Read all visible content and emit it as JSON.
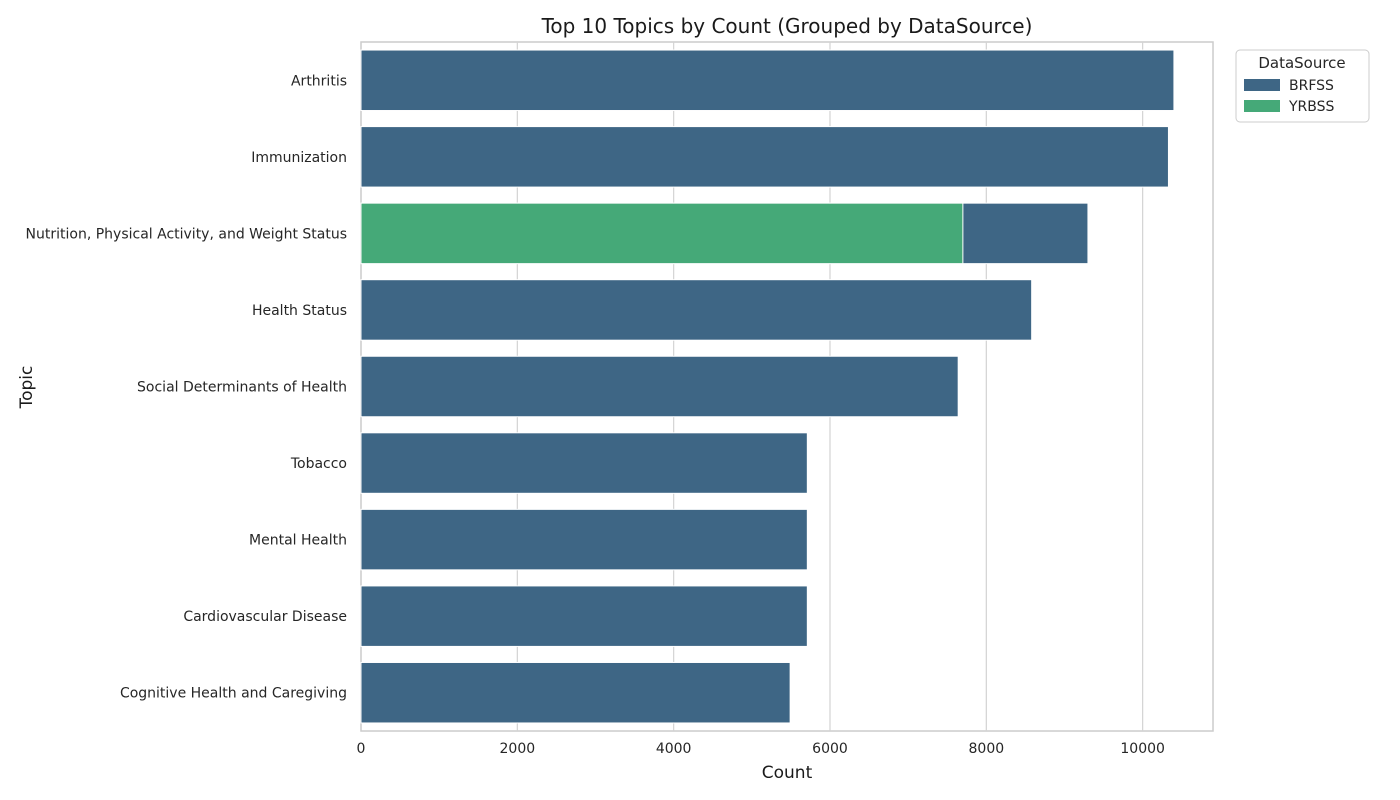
{
  "chart_data": {
    "type": "bar",
    "orientation": "horizontal",
    "title": "Top 10 Topics by Count (Grouped by DataSource)",
    "xlabel": "Count",
    "ylabel": "Topic",
    "xlim": [
      0,
      10900
    ],
    "xticks": [
      0,
      2000,
      4000,
      6000,
      8000,
      10000
    ],
    "grid": true,
    "legend_title": "DataSource",
    "legend_position": "outside-top-right",
    "categories": [
      "Arthritis",
      "Immunization",
      "Nutrition, Physical Activity, and Weight Status",
      "Health Status",
      "Social Determinants of Health",
      "Tobacco",
      "Mental Health",
      "Cardiovascular Disease",
      "Cognitive Health and Caregiving"
    ],
    "series": [
      {
        "name": "BRFSS",
        "color": "#3e6685",
        "values": [
          10400,
          10330,
          9300,
          8580,
          7640,
          5710,
          5710,
          5710,
          5490
        ]
      },
      {
        "name": "YRBSS",
        "color": "#45a978",
        "values": [
          null,
          null,
          7700,
          null,
          null,
          null,
          null,
          null,
          null
        ]
      }
    ]
  }
}
